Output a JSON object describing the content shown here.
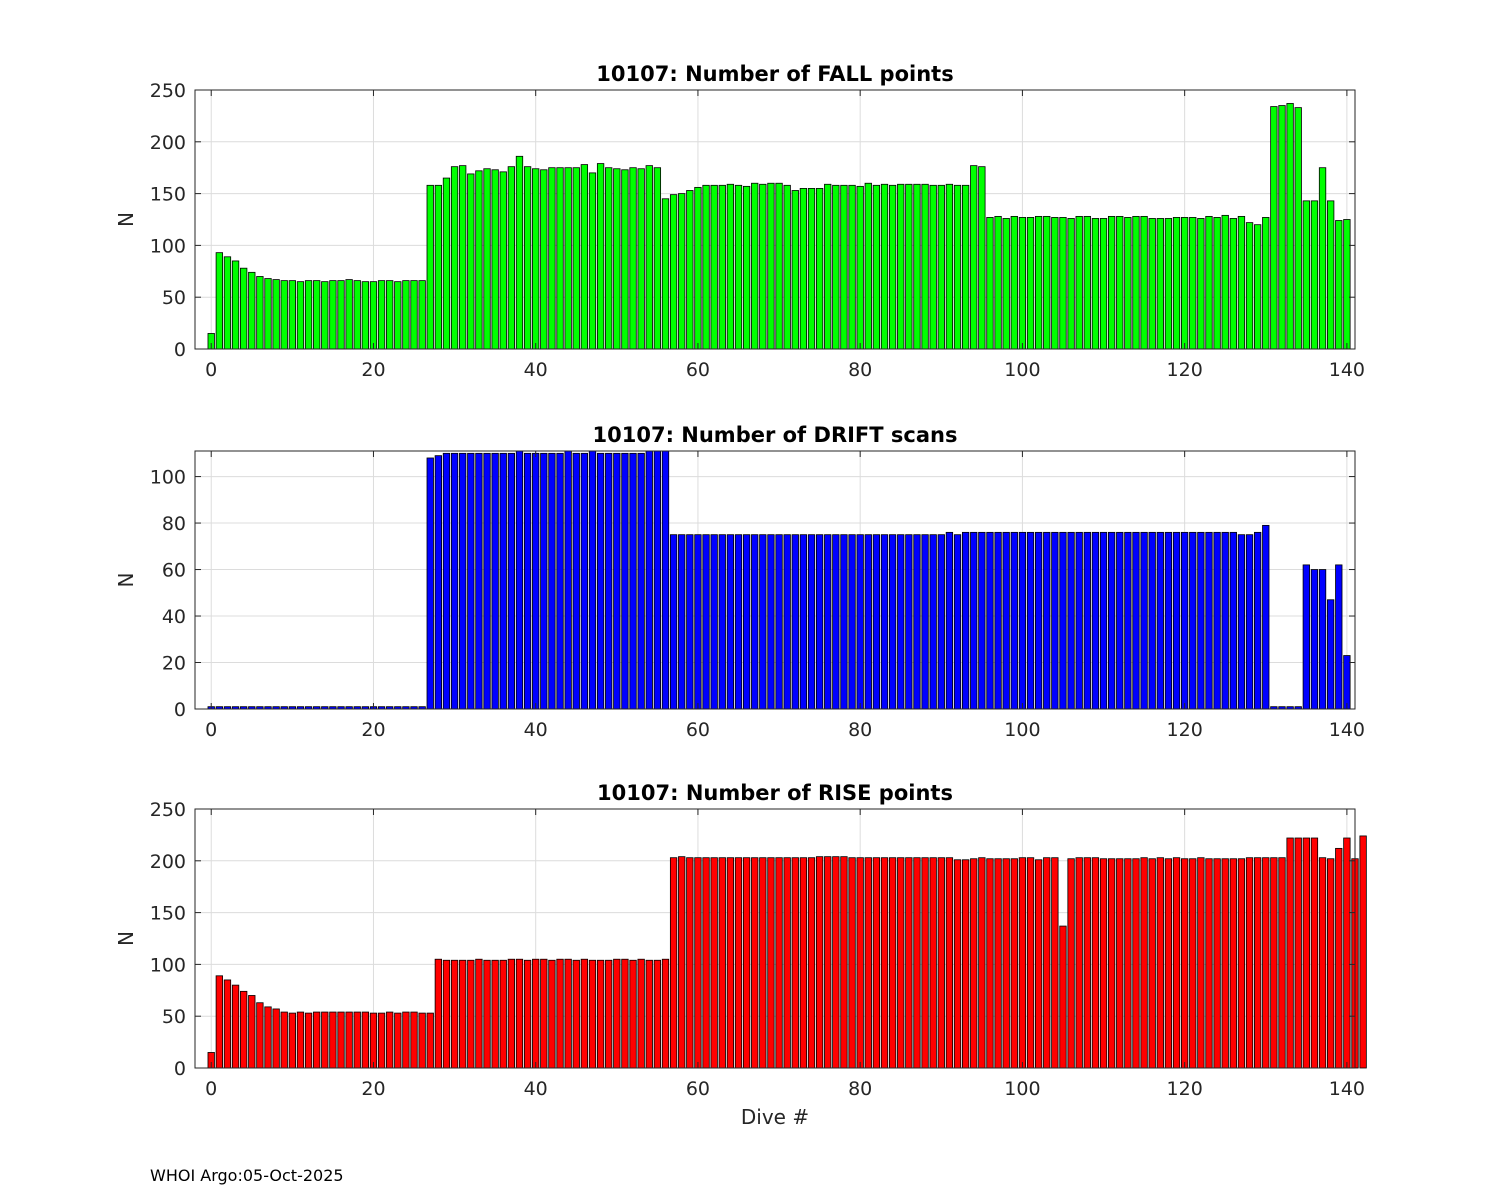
{
  "footer": {
    "text": "WHOI Argo:05-Oct-2025"
  },
  "chart_data": [
    {
      "type": "bar",
      "title": "10107: Number of FALL points",
      "xlabel": "",
      "ylabel": "N",
      "xlim": [
        -2,
        141
      ],
      "ylim": [
        0,
        250
      ],
      "xticks": [
        0,
        20,
        40,
        60,
        80,
        100,
        120,
        140
      ],
      "yticks": [
        0,
        50,
        100,
        150,
        200,
        250
      ],
      "grid": true,
      "legend": "none",
      "color": "#00ff00",
      "x_start": 0,
      "values": [
        15,
        93,
        89,
        85,
        78,
        74,
        70,
        68,
        67,
        66,
        66,
        65,
        66,
        66,
        65,
        66,
        66,
        67,
        66,
        65,
        65,
        66,
        66,
        65,
        66,
        66,
        66,
        158,
        158,
        165,
        176,
        177,
        169,
        172,
        174,
        173,
        171,
        176,
        186,
        176,
        174,
        173,
        175,
        175,
        175,
        175,
        178,
        170,
        179,
        175,
        174,
        173,
        175,
        174,
        177,
        175,
        145,
        149,
        150,
        153,
        156,
        158,
        158,
        158,
        159,
        158,
        157,
        160,
        159,
        160,
        160,
        158,
        153,
        155,
        155,
        155,
        159,
        158,
        158,
        158,
        157,
        160,
        158,
        159,
        158,
        159,
        159,
        159,
        159,
        158,
        158,
        159,
        158,
        158,
        177,
        176,
        127,
        128,
        126,
        128,
        127,
        127,
        128,
        128,
        127,
        127,
        126,
        128,
        128,
        126,
        126,
        128,
        128,
        127,
        128,
        128,
        126,
        126,
        126,
        127,
        127,
        127,
        126,
        128,
        127,
        129,
        126,
        128,
        122,
        120,
        127,
        234,
        235,
        237,
        233,
        143,
        143,
        175,
        143,
        124,
        125
      ]
    },
    {
      "type": "bar",
      "title": "10107: Number of DRIFT scans",
      "xlabel": "",
      "ylabel": "N",
      "xlim": [
        -2,
        141
      ],
      "ylim": [
        0,
        111
      ],
      "xticks": [
        0,
        20,
        40,
        60,
        80,
        100,
        120,
        140
      ],
      "yticks": [
        0,
        20,
        40,
        60,
        80,
        100
      ],
      "grid": true,
      "legend": "none",
      "color": "#0000ff",
      "x_start": -1,
      "values": [
        0,
        1,
        1,
        1,
        1,
        1,
        1,
        1,
        1,
        1,
        1,
        1,
        1,
        1,
        1,
        1,
        1,
        1,
        1,
        1,
        1,
        1,
        1,
        1,
        1,
        1,
        1,
        1,
        108,
        109,
        110,
        110,
        110,
        110,
        110,
        110,
        110,
        110,
        110,
        111,
        110,
        110,
        110,
        110,
        110,
        111,
        110,
        110,
        111,
        110,
        110,
        110,
        110,
        110,
        110,
        111,
        111,
        111,
        75,
        75,
        75,
        75,
        75,
        75,
        75,
        75,
        75,
        75,
        75,
        75,
        75,
        75,
        75,
        75,
        75,
        75,
        75,
        75,
        75,
        75,
        75,
        75,
        75,
        75,
        75,
        75,
        75,
        75,
        75,
        75,
        75,
        75,
        76,
        75,
        76,
        76,
        76,
        76,
        76,
        76,
        76,
        76,
        76,
        76,
        76,
        76,
        76,
        76,
        76,
        76,
        76,
        76,
        76,
        76,
        76,
        76,
        76,
        76,
        76,
        76,
        76,
        76,
        76,
        76,
        76,
        76,
        76,
        76,
        75,
        75,
        76,
        79,
        1,
        1,
        1,
        1,
        62,
        60,
        60,
        47,
        62,
        23
      ]
    },
    {
      "type": "bar",
      "title": "10107: Number of RISE points",
      "xlabel": "Dive #",
      "ylabel": "N",
      "xlim": [
        -2,
        141
      ],
      "ylim": [
        0,
        250
      ],
      "xticks": [
        0,
        20,
        40,
        60,
        80,
        100,
        120,
        140
      ],
      "yticks": [
        0,
        50,
        100,
        150,
        200,
        250
      ],
      "grid": true,
      "legend": "none",
      "color": "#ff0000",
      "x_start": 0,
      "values": [
        15,
        89,
        85,
        80,
        74,
        70,
        63,
        59,
        57,
        54,
        53,
        54,
        53,
        54,
        54,
        54,
        54,
        54,
        54,
        54,
        53,
        53,
        54,
        53,
        54,
        54,
        53,
        53,
        105,
        104,
        104,
        104,
        104,
        105,
        104,
        104,
        104,
        105,
        105,
        104,
        105,
        105,
        104,
        105,
        105,
        104,
        105,
        104,
        104,
        104,
        105,
        105,
        104,
        105,
        104,
        104,
        105,
        203,
        204,
        203,
        203,
        203,
        203,
        203,
        203,
        203,
        203,
        203,
        203,
        203,
        203,
        203,
        203,
        203,
        203,
        204,
        204,
        204,
        204,
        203,
        203,
        203,
        203,
        203,
        203,
        203,
        203,
        203,
        203,
        203,
        203,
        203,
        201,
        201,
        202,
        203,
        202,
        202,
        202,
        202,
        203,
        203,
        201,
        203,
        203,
        137,
        202,
        203,
        203,
        203,
        202,
        202,
        202,
        202,
        202,
        203,
        202,
        203,
        202,
        203,
        202,
        202,
        203,
        202,
        202,
        202,
        202,
        202,
        203,
        203,
        203,
        203,
        203,
        222,
        222,
        222,
        222,
        203,
        202,
        212,
        222,
        202,
        224
      ]
    }
  ]
}
